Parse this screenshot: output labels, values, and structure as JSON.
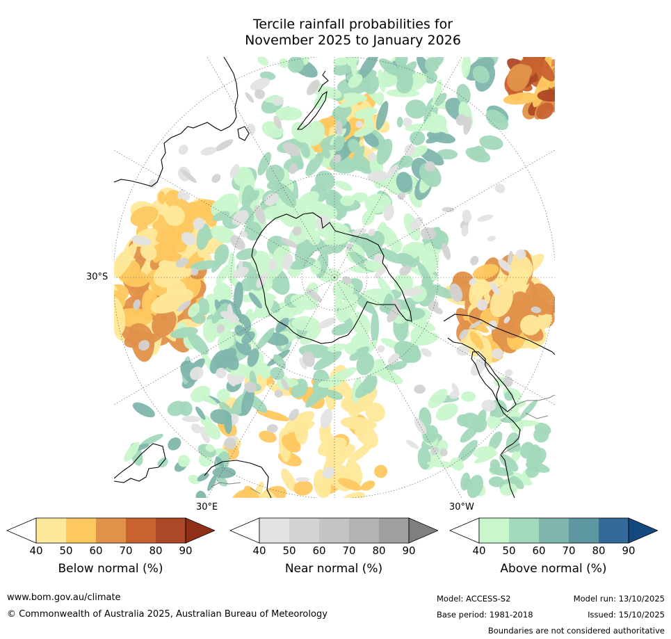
{
  "title": {
    "line1": "Tercile rainfall probabilities for",
    "line2": "November 2025 to January 2026"
  },
  "map": {
    "projection": "south polar stereographic",
    "lat_label": "30°S",
    "lon_labels": [
      "30°E",
      "30°W"
    ],
    "colors": {
      "below": [
        "#ffffff",
        "#fee89a",
        "#fec860",
        "#e0914a",
        "#c8622f",
        "#ad4826",
        "#8f3016"
      ],
      "near": [
        "#ffffff",
        "#e3e3e3",
        "#d3d3d3",
        "#c4c4c4",
        "#b3b3b3",
        "#a0a0a0",
        "#7f7f7f"
      ],
      "above": [
        "#ffffff",
        "#c9f7cc",
        "#a2d8bb",
        "#7fb6ad",
        "#5d97a2",
        "#336a99",
        "#13497f"
      ],
      "coast": "#000000",
      "border": "#808080",
      "graticule": "#555555"
    }
  },
  "colorbars": [
    {
      "id": "below",
      "title": "Below normal (%)",
      "ticks": [
        "40",
        "50",
        "60",
        "70",
        "80",
        "90"
      ]
    },
    {
      "id": "near",
      "title": "Near normal (%)",
      "ticks": [
        "40",
        "50",
        "60",
        "70",
        "80",
        "90"
      ]
    },
    {
      "id": "above",
      "title": "Above normal (%)",
      "ticks": [
        "40",
        "50",
        "60",
        "70",
        "80",
        "90"
      ]
    }
  ],
  "footer": {
    "website": "www.bom.gov.au/climate",
    "copyright": "© Commonwealth of Australia 2025, Australian Bureau of Meteorology",
    "model": "Model: ACCESS-S2",
    "model_run": "Model run: 13/10/2025",
    "base_period": "Base period: 1981-2018",
    "issued": "Issued: 15/10/2025",
    "disclaimer": "Boundaries are not considered authoritative"
  }
}
